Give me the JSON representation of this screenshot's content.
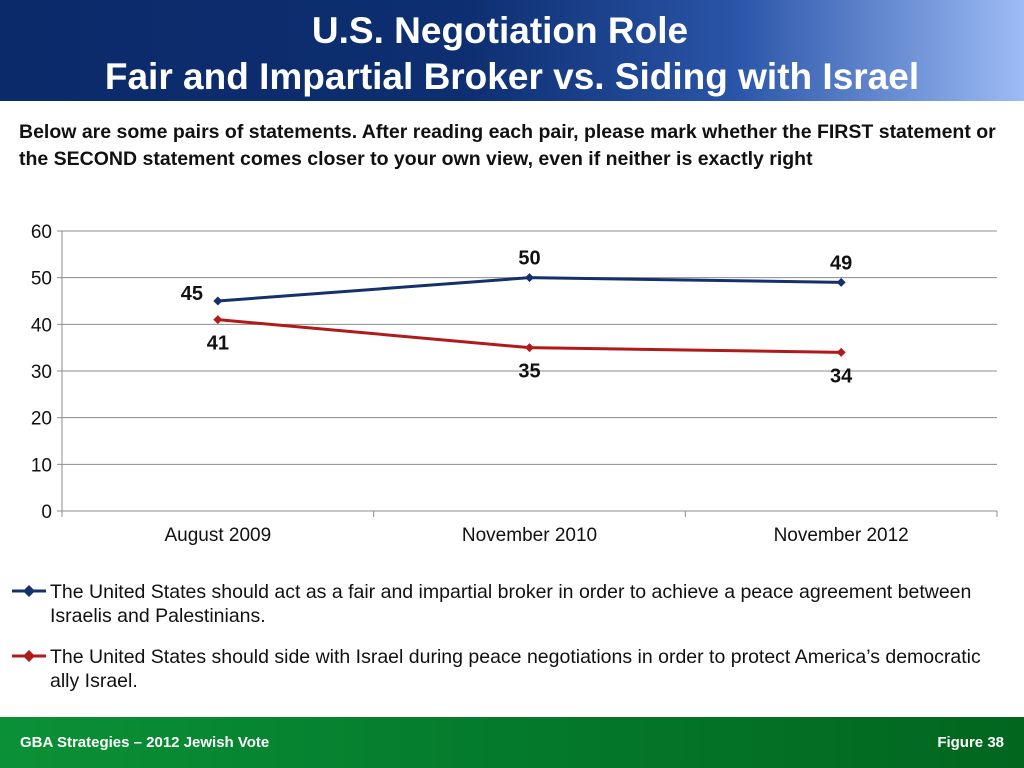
{
  "header": {
    "title_line1": "U.S. Negotiation Role",
    "title_line2": "Fair and Impartial Broker vs. Siding with Israel"
  },
  "question": "Below are some pairs of statements. After reading each pair, please mark whether the FIRST statement or the SECOND statement comes closer to your own view, even if neither is exactly right",
  "chart_data": {
    "type": "line",
    "categories": [
      "August 2009",
      "November 2010",
      "November 2012"
    ],
    "series": [
      {
        "name": "The United States should act as a fair and impartial broker in order to achieve a peace agreement between Israelis and Palestinians.",
        "values": [
          45,
          50,
          49
        ],
        "color": "#16306b"
      },
      {
        "name": "The United States should side with Israel during peace negotiations in order to protect America’s democratic ally Israel.",
        "values": [
          41,
          35,
          34
        ],
        "color": "#b01a1a"
      }
    ],
    "yticks": [
      "0",
      "10",
      "20",
      "30",
      "40",
      "50",
      "60"
    ],
    "ylim": [
      0,
      60
    ],
    "grid": true,
    "legend_position": "bottom"
  },
  "footer": {
    "left": "GBA Strategies – 2012 Jewish Vote",
    "right": "Figure  38"
  }
}
